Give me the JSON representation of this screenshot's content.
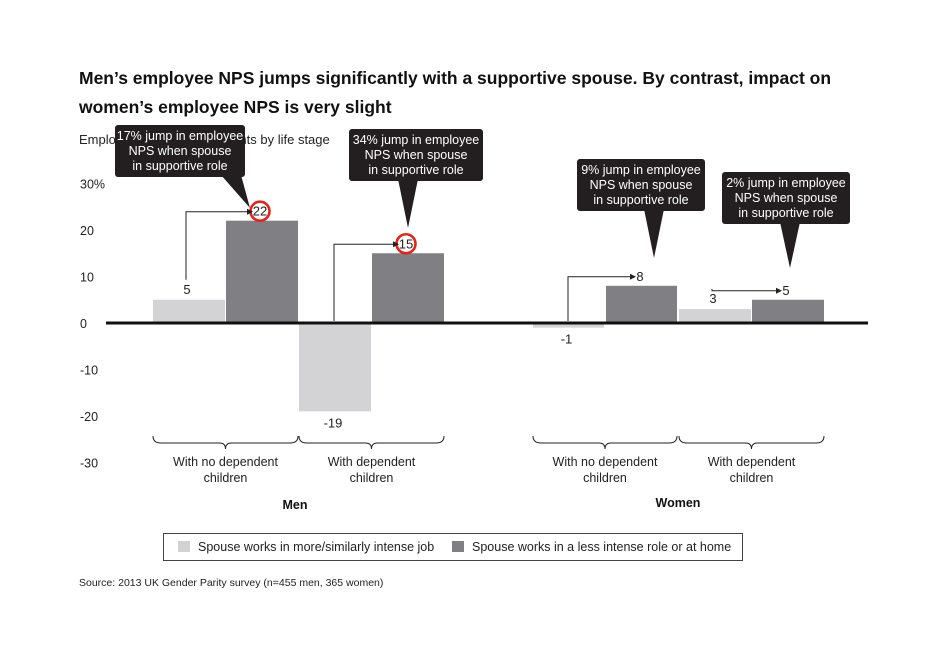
{
  "title": "Men’s employee NPS jumps significantly with a supportive spouse. By contrast, impact on women’s employee NPS is very slight",
  "subtitle": "Employee NPS of respondents by life stage",
  "source": "Source: 2013 UK Gender Parity survey (n=455 men, 365 women)",
  "colors": {
    "light": "#d3d3d5",
    "dark": "#808084",
    "callout": "#231f20",
    "highlight": "#e1251b"
  },
  "chart_data": {
    "type": "bar",
    "title": "",
    "xlabel": "",
    "ylabel": "",
    "ylim": [
      -30,
      30
    ],
    "y_ticks": [
      {
        "value": 30,
        "label": "30%"
      },
      {
        "value": 20,
        "label": "20"
      },
      {
        "value": 10,
        "label": "10"
      },
      {
        "value": 0,
        "label": "0"
      },
      {
        "value": -10,
        "label": "-10"
      },
      {
        "value": -20,
        "label": "-20"
      },
      {
        "value": -30,
        "label": "-30"
      }
    ],
    "grid": false,
    "legend_position": "bottom",
    "groups": [
      {
        "name": "Men",
        "categories": [
          {
            "label": [
              "With no dependent",
              "children"
            ],
            "values": [
              5,
              22
            ],
            "value_labels": [
              "5",
              "22"
            ],
            "highlight_second": true,
            "callout": [
              "17% jump in employee",
              "NPS when spouse",
              "in supportive role"
            ]
          },
          {
            "label": [
              "With dependent",
              "children"
            ],
            "values": [
              -19,
              15
            ],
            "value_labels": [
              "-19",
              "15"
            ],
            "highlight_second": true,
            "callout": [
              "34% jump in employee",
              "NPS when spouse",
              "in supportive role"
            ]
          }
        ]
      },
      {
        "name": "Women",
        "categories": [
          {
            "label": [
              "With no dependent",
              "children"
            ],
            "values": [
              -1,
              8
            ],
            "value_labels": [
              "-1",
              "8"
            ],
            "highlight_second": false,
            "callout": [
              "9% jump in employee",
              "NPS when spouse",
              "in supportive role"
            ]
          },
          {
            "label": [
              "With dependent",
              "children"
            ],
            "values": [
              3,
              5
            ],
            "value_labels": [
              "3",
              "5"
            ],
            "highlight_second": false,
            "callout": [
              "2% jump in employee",
              "NPS when spouse",
              "in supportive role"
            ]
          }
        ]
      }
    ],
    "series": [
      {
        "name": "Spouse works in more/similarly intense job"
      },
      {
        "name": "Spouse works in a less intense role or at home"
      }
    ]
  }
}
